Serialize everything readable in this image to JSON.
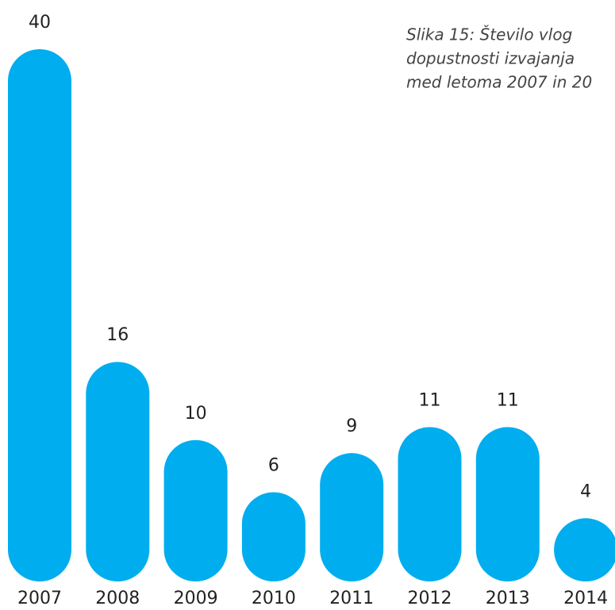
{
  "chart_data": {
    "type": "bar",
    "title_lines": [
      "Slika 15: Število vlog",
      "dopustnosti  izvajanja",
      "med letoma 2007 in 20"
    ],
    "categories": [
      "2007",
      "2008",
      "2009",
      "2010",
      "2011",
      "2012",
      "2013",
      "2014"
    ],
    "values": [
      40,
      16,
      10,
      6,
      9,
      11,
      11,
      4
    ],
    "color": "#00adef"
  }
}
